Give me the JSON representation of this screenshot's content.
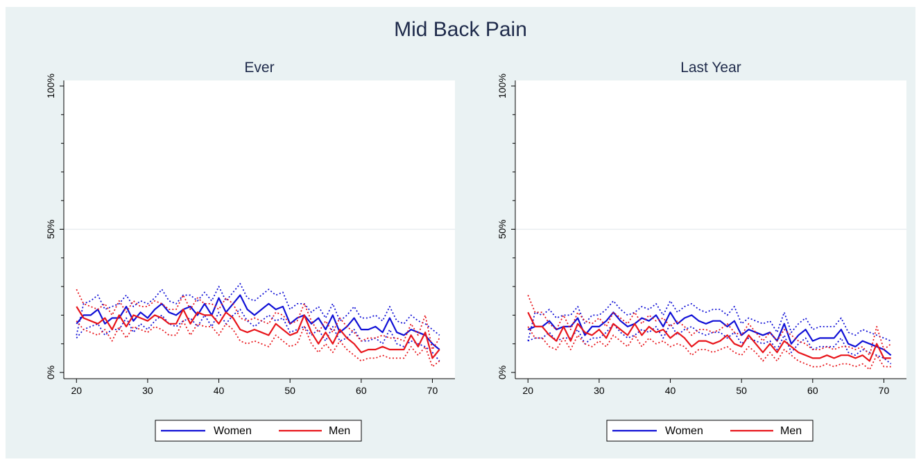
{
  "title": "Mid Back Pain",
  "colors": {
    "background": "#eaf2f3",
    "plot_bg": "#ffffff",
    "women": "#0f0fd6",
    "men": "#e8141a",
    "grid": "#e6ecee"
  },
  "legend": [
    "Women",
    "Men"
  ],
  "chart_data": [
    {
      "type": "line",
      "title": "Ever",
      "xlabel": "",
      "ylabel": "",
      "xlim": [
        19,
        72
      ],
      "ylim": [
        0,
        100
      ],
      "xticks": [
        20,
        30,
        40,
        50,
        60,
        70
      ],
      "yticks": [
        0,
        50,
        100
      ],
      "ytick_labels": [
        "0%",
        "50%",
        "100%"
      ],
      "grid": "horizontal at 50%",
      "legend_position": "bottom",
      "x": [
        20,
        21,
        22,
        23,
        24,
        25,
        26,
        27,
        28,
        29,
        30,
        31,
        32,
        33,
        34,
        35,
        36,
        37,
        38,
        39,
        40,
        41,
        42,
        43,
        44,
        45,
        46,
        47,
        48,
        49,
        50,
        51,
        52,
        53,
        54,
        55,
        56,
        57,
        58,
        59,
        60,
        61,
        62,
        63,
        64,
        65,
        66,
        67,
        68,
        69,
        70,
        71
      ],
      "series": [
        {
          "name": "Women",
          "style": "solid",
          "values": [
            17,
            20,
            20,
            22,
            17,
            19,
            19,
            23,
            18,
            21,
            19,
            22,
            24,
            21,
            20,
            22,
            23,
            20,
            24,
            20,
            26,
            21,
            24,
            27,
            22,
            20,
            22,
            24,
            22,
            23,
            17,
            19,
            20,
            17,
            19,
            15,
            20,
            14,
            16,
            19,
            15,
            15,
            16,
            14,
            19,
            14,
            13,
            15,
            14,
            13,
            10,
            8
          ]
        },
        {
          "name": "Women upper CI",
          "style": "dotted",
          "values": [
            13,
            24,
            25,
            27,
            22,
            23,
            24,
            27,
            23,
            25,
            24,
            26,
            29,
            25,
            24,
            27,
            27,
            25,
            28,
            25,
            30,
            25,
            28,
            31,
            26,
            25,
            27,
            29,
            27,
            28,
            22,
            24,
            24,
            21,
            23,
            19,
            24,
            18,
            20,
            23,
            19,
            19,
            20,
            18,
            23,
            18,
            17,
            20,
            18,
            17,
            15,
            13
          ]
        },
        {
          "name": "Women lower CI",
          "style": "dotted",
          "values": [
            12,
            15,
            16,
            17,
            13,
            15,
            15,
            19,
            14,
            17,
            15,
            18,
            20,
            17,
            16,
            18,
            19,
            16,
            20,
            16,
            21,
            17,
            20,
            22,
            18,
            16,
            18,
            20,
            18,
            19,
            14,
            15,
            16,
            13,
            15,
            11,
            16,
            11,
            12,
            15,
            11,
            11,
            12,
            10,
            15,
            10,
            9,
            11,
            10,
            9,
            7,
            4
          ]
        },
        {
          "name": "Men",
          "style": "solid",
          "values": [
            23,
            19,
            18,
            17,
            19,
            15,
            20,
            16,
            20,
            19,
            18,
            20,
            19,
            17,
            17,
            22,
            17,
            21,
            20,
            20,
            17,
            21,
            19,
            15,
            14,
            15,
            14,
            13,
            17,
            15,
            13,
            14,
            20,
            14,
            10,
            14,
            10,
            15,
            12,
            10,
            7,
            8,
            8,
            9,
            8,
            8,
            8,
            13,
            9,
            14,
            5,
            8
          ]
        },
        {
          "name": "Men upper CI",
          "style": "dotted",
          "values": [
            29,
            24,
            23,
            22,
            24,
            20,
            25,
            21,
            25,
            23,
            23,
            25,
            24,
            22,
            22,
            27,
            22,
            26,
            24,
            24,
            22,
            26,
            24,
            19,
            18,
            19,
            18,
            17,
            21,
            20,
            17,
            18,
            24,
            18,
            14,
            18,
            14,
            19,
            16,
            14,
            11,
            12,
            12,
            13,
            12,
            12,
            11,
            17,
            13,
            20,
            8,
            12
          ]
        },
        {
          "name": "Men lower CI",
          "style": "dotted",
          "values": [
            18,
            15,
            14,
            13,
            15,
            11,
            16,
            12,
            16,
            15,
            14,
            16,
            15,
            13,
            13,
            18,
            13,
            17,
            16,
            16,
            13,
            17,
            15,
            11,
            10,
            11,
            10,
            9,
            13,
            11,
            9,
            10,
            16,
            10,
            7,
            10,
            7,
            11,
            8,
            6,
            4,
            5,
            5,
            6,
            5,
            5,
            5,
            9,
            6,
            9,
            2,
            4
          ]
        }
      ]
    },
    {
      "type": "line",
      "title": "Last Year",
      "xlabel": "",
      "ylabel": "",
      "xlim": [
        19,
        72
      ],
      "ylim": [
        0,
        100
      ],
      "xticks": [
        20,
        30,
        40,
        50,
        60,
        70
      ],
      "yticks": [
        0,
        50,
        100
      ],
      "ytick_labels": [
        "0%",
        "50%",
        "100%"
      ],
      "grid": "horizontal at 50%",
      "legend_position": "bottom",
      "x": [
        20,
        21,
        22,
        23,
        24,
        25,
        26,
        27,
        28,
        29,
        30,
        31,
        32,
        33,
        34,
        35,
        36,
        37,
        38,
        39,
        40,
        41,
        42,
        43,
        44,
        45,
        46,
        47,
        48,
        49,
        50,
        51,
        52,
        53,
        54,
        55,
        56,
        57,
        58,
        59,
        60,
        61,
        62,
        63,
        64,
        65,
        66,
        67,
        68,
        69,
        70,
        71
      ],
      "series": [
        {
          "name": "Women",
          "style": "solid",
          "values": [
            15,
            16,
            16,
            18,
            15,
            16,
            16,
            19,
            13,
            16,
            16,
            18,
            21,
            18,
            16,
            17,
            19,
            18,
            20,
            16,
            21,
            17,
            19,
            20,
            18,
            17,
            18,
            18,
            16,
            18,
            13,
            15,
            14,
            13,
            14,
            11,
            17,
            10,
            13,
            15,
            11,
            12,
            12,
            12,
            15,
            10,
            9,
            11,
            10,
            9,
            8,
            6
          ]
        },
        {
          "name": "Women upper CI",
          "style": "dotted",
          "values": [
            11,
            21,
            20,
            22,
            19,
            20,
            20,
            23,
            17,
            20,
            20,
            22,
            25,
            22,
            20,
            21,
            23,
            22,
            24,
            20,
            25,
            21,
            23,
            24,
            22,
            21,
            22,
            22,
            20,
            23,
            17,
            19,
            18,
            17,
            18,
            14,
            21,
            14,
            17,
            19,
            15,
            16,
            16,
            16,
            19,
            14,
            13,
            15,
            14,
            13,
            12,
            11
          ]
        },
        {
          "name": "Women lower CI",
          "style": "dotted",
          "values": [
            11,
            12,
            12,
            14,
            11,
            12,
            12,
            15,
            10,
            12,
            12,
            14,
            17,
            14,
            12,
            13,
            15,
            14,
            16,
            12,
            17,
            13,
            15,
            16,
            14,
            13,
            14,
            14,
            12,
            14,
            10,
            12,
            11,
            10,
            11,
            8,
            13,
            7,
            10,
            12,
            8,
            9,
            9,
            9,
            12,
            7,
            6,
            8,
            7,
            6,
            5,
            3
          ]
        },
        {
          "name": "Men",
          "style": "solid",
          "values": [
            21,
            16,
            16,
            13,
            11,
            16,
            11,
            17,
            14,
            13,
            15,
            12,
            17,
            15,
            13,
            17,
            13,
            16,
            14,
            15,
            12,
            14,
            12,
            9,
            11,
            11,
            10,
            11,
            13,
            10,
            9,
            13,
            10,
            7,
            10,
            7,
            11,
            9,
            7,
            6,
            5,
            5,
            6,
            5,
            6,
            6,
            5,
            6,
            4,
            10,
            5,
            5
          ]
        },
        {
          "name": "Men upper CI",
          "style": "dotted",
          "values": [
            27,
            21,
            21,
            17,
            15,
            20,
            15,
            21,
            18,
            17,
            19,
            16,
            21,
            19,
            17,
            21,
            17,
            20,
            18,
            19,
            16,
            18,
            16,
            13,
            15,
            15,
            14,
            15,
            17,
            14,
            13,
            17,
            14,
            11,
            14,
            11,
            15,
            13,
            11,
            10,
            8,
            8,
            9,
            8,
            9,
            9,
            8,
            9,
            6,
            16,
            8,
            10
          ]
        },
        {
          "name": "Men lower CI",
          "style": "dotted",
          "values": [
            16,
            12,
            12,
            9,
            8,
            12,
            8,
            13,
            10,
            9,
            11,
            9,
            13,
            11,
            9,
            13,
            9,
            12,
            10,
            11,
            9,
            10,
            9,
            6,
            8,
            8,
            7,
            8,
            9,
            7,
            6,
            9,
            7,
            4,
            7,
            4,
            8,
            6,
            4,
            3,
            2,
            2,
            3,
            2,
            3,
            3,
            2,
            3,
            1,
            6,
            2,
            2
          ]
        }
      ]
    }
  ]
}
